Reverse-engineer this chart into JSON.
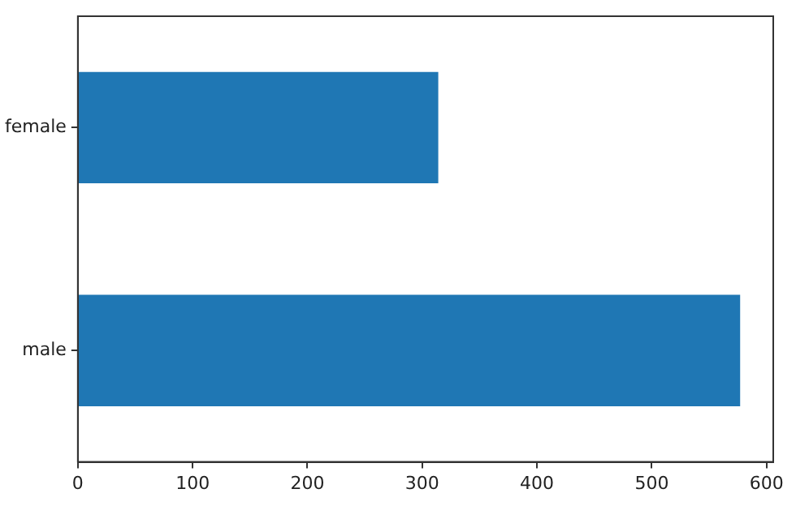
{
  "chart_data": {
    "type": "bar",
    "orientation": "horizontal",
    "categories": [
      "female",
      "male"
    ],
    "values": [
      314,
      577
    ],
    "color": "#1f77b4",
    "xlim": [
      0,
      605.85
    ],
    "xticks": [
      0,
      100,
      200,
      300,
      400,
      500,
      600
    ],
    "grid": false,
    "legend": false
  }
}
